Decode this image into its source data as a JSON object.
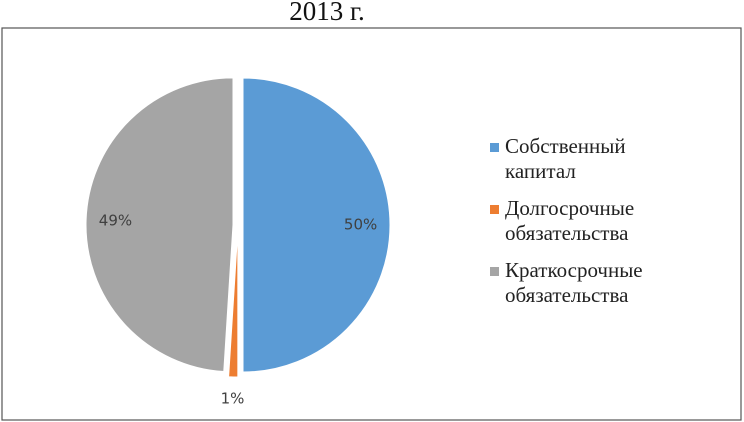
{
  "chart_data": {
    "type": "pie",
    "title": "2013 г.",
    "categories": [
      "Собственный капитал",
      "Долгосрочные обязательства",
      "Краткосрочные обязательства"
    ],
    "values": [
      50,
      1,
      49
    ],
    "value_labels": [
      "50%",
      "1%",
      "49%"
    ],
    "colors": [
      "#5b9bd5",
      "#ed7d31",
      "#a5a5a5"
    ],
    "legend": "right"
  }
}
